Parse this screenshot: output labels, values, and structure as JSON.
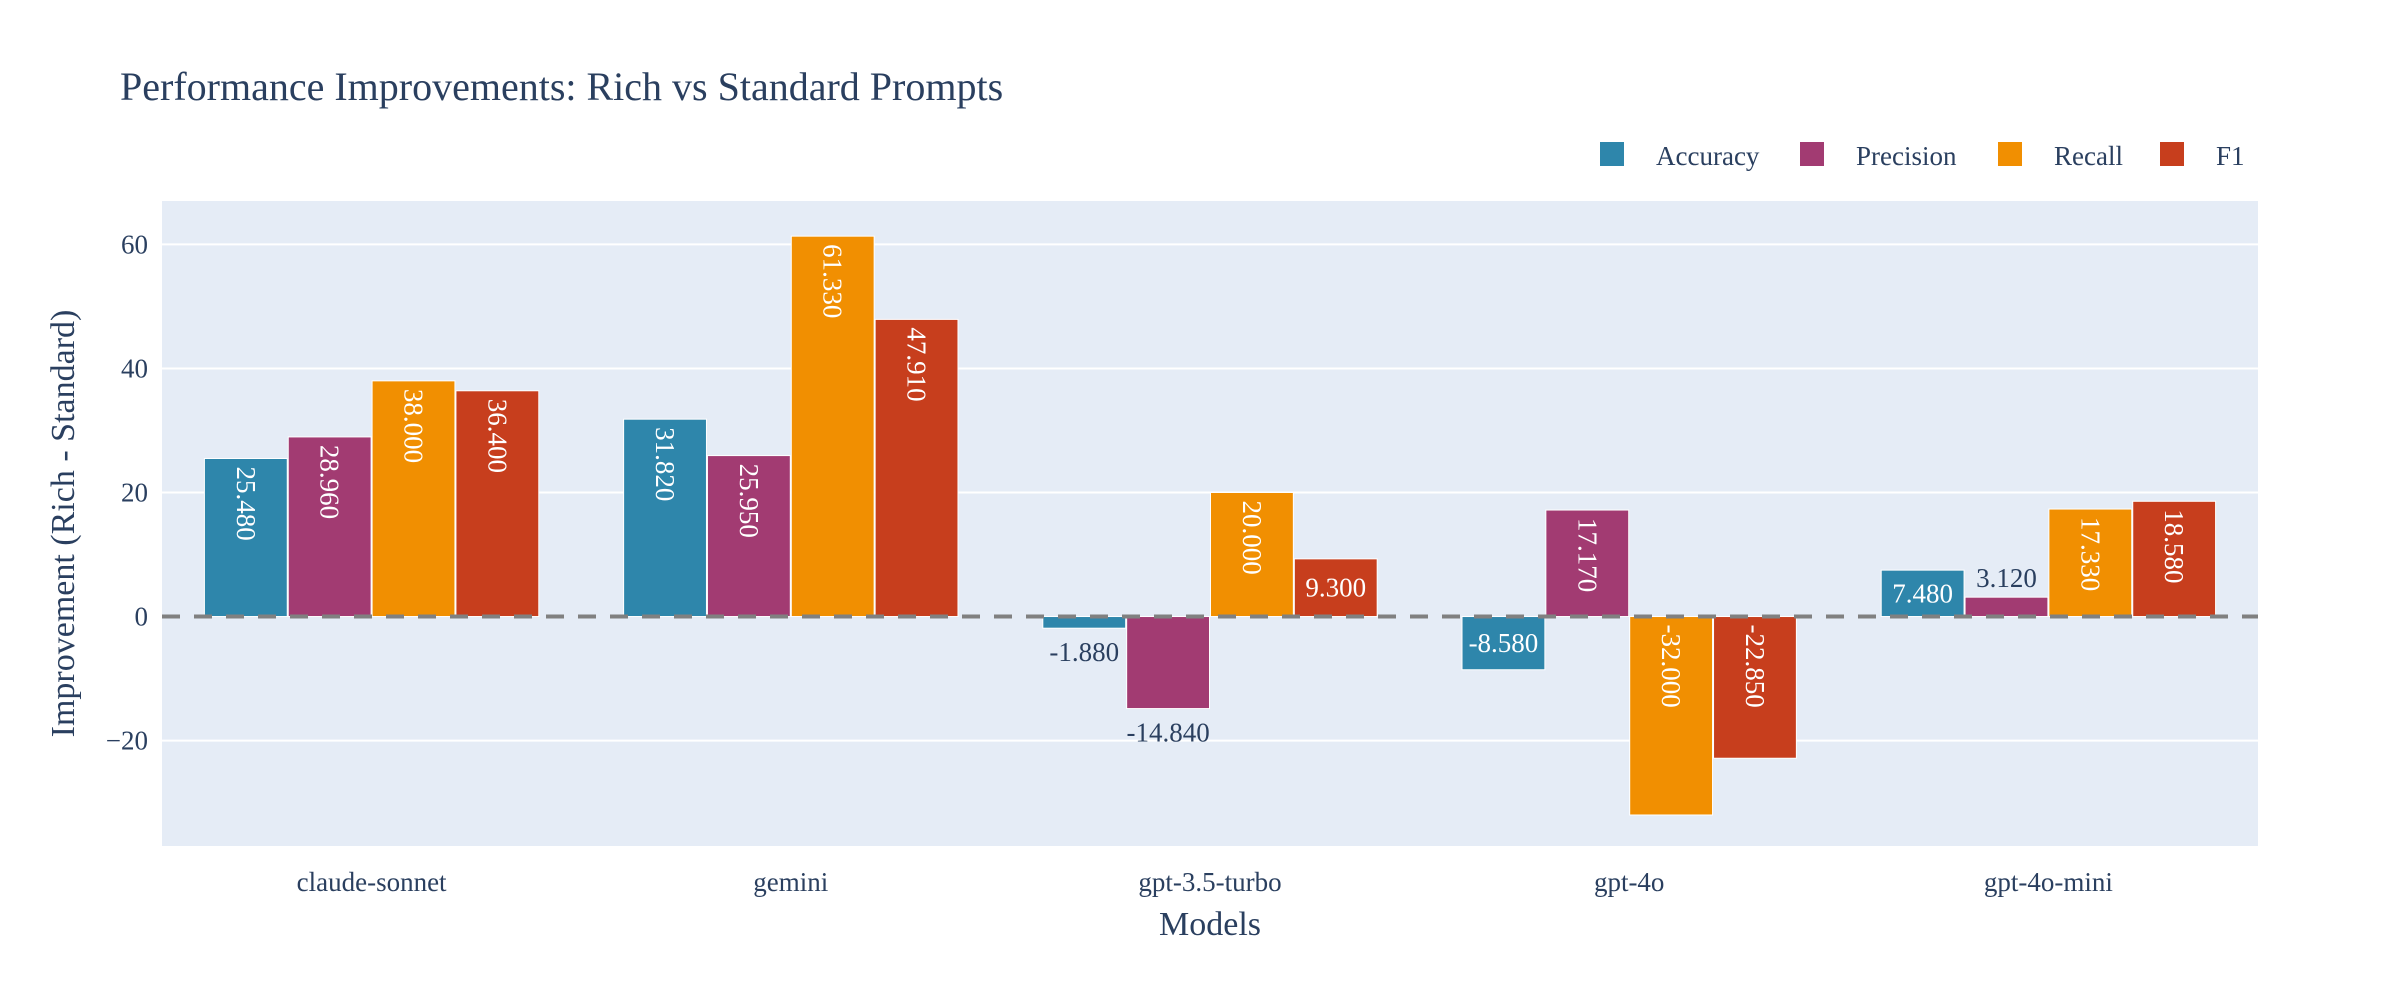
{
  "chart_data": {
    "type": "bar",
    "title": "Performance Improvements: Rich vs Standard Prompts",
    "xlabel": "Models",
    "ylabel": "Improvement (Rich - Standard)",
    "categories": [
      "claude-sonnet",
      "gemini",
      "gpt-3.5-turbo",
      "gpt-4o",
      "gpt-4o-mini"
    ],
    "series": [
      {
        "name": "Accuracy",
        "color": "#2e86ab",
        "values": [
          25.48,
          31.82,
          -1.88,
          -8.58,
          7.48
        ],
        "labels": [
          "25.480",
          "31.820",
          "-1.880",
          "-8.580",
          "7.480"
        ]
      },
      {
        "name": "Precision",
        "color": "#a23b72",
        "values": [
          28.96,
          25.95,
          -14.84,
          17.17,
          3.12
        ],
        "labels": [
          "28.960",
          "25.950",
          "-14.840",
          "17.170",
          "3.120"
        ]
      },
      {
        "name": "Recall",
        "color": "#f18f01",
        "values": [
          38.0,
          61.33,
          20.0,
          -32.0,
          17.33
        ],
        "labels": [
          "38.000",
          "61.330",
          "20.000",
          "-32.000",
          "17.330"
        ]
      },
      {
        "name": "F1",
        "color": "#c73e1d",
        "values": [
          36.4,
          47.91,
          9.3,
          -22.85,
          18.58
        ],
        "labels": [
          "36.400",
          "47.910",
          "9.300",
          "-22.850",
          "18.580"
        ]
      }
    ],
    "ylim": [
      -37,
      67
    ],
    "yticks": [
      -20,
      0,
      20,
      40,
      60
    ],
    "ytick_labels": [
      "−20",
      "0",
      "20",
      "40",
      "60"
    ],
    "grid": true,
    "legend_position": "top-right",
    "reference_line": {
      "y": 0,
      "style": "dashed",
      "color": "#808080"
    }
  }
}
